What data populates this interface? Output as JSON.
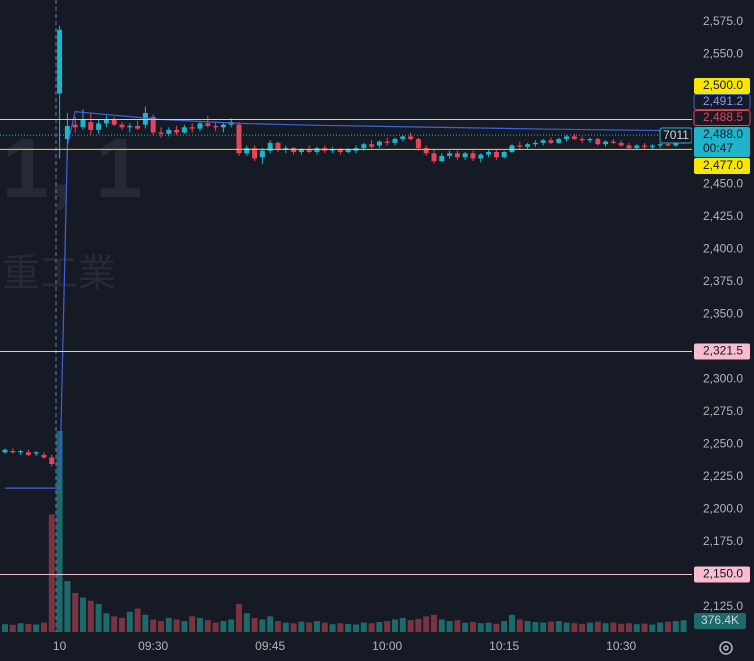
{
  "chart_data": {
    "type": "candlestick",
    "watermark_symbol": "1, 1",
    "watermark_name": "重工業",
    "up_color": "#1fb4c9",
    "down_color": "#e5455a",
    "up_volume_color": "#1d6a6b",
    "down_volume_color": "#7a3441",
    "xlim": [
      -0.641,
      88.08
    ],
    "xticks": [
      {
        "value": 7,
        "label": "10"
      },
      {
        "value": 19,
        "label": "09:30"
      },
      {
        "value": 34,
        "label": "09:45"
      },
      {
        "value": 49,
        "label": "10:00"
      },
      {
        "value": 64,
        "label": "10:15"
      },
      {
        "value": 79,
        "label": "10:30"
      }
    ],
    "ylim": [
      2105.8,
      2591.9
    ],
    "yticks": [
      {
        "value": 2575,
        "label": "2,575.0"
      },
      {
        "value": 2550,
        "label": "2,550.0"
      },
      {
        "value": 2450,
        "label": "2,450.0"
      },
      {
        "value": 2425,
        "label": "2,425.0"
      },
      {
        "value": 2400,
        "label": "2,400.0"
      },
      {
        "value": 2375,
        "label": "2,375.0"
      },
      {
        "value": 2350,
        "label": "2,350.0"
      },
      {
        "value": 2300,
        "label": "2,300.0"
      },
      {
        "value": 2275,
        "label": "2,275.0"
      },
      {
        "value": 2250,
        "label": "2,250.0"
      },
      {
        "value": 2225,
        "label": "2,225.0"
      },
      {
        "value": 2200,
        "label": "2,200.0"
      },
      {
        "value": 2175,
        "label": "2,175.0"
      },
      {
        "value": 2125,
        "label": "2,125.0"
      }
    ],
    "open": [
      2244,
      2245,
      2244,
      2244,
      2243,
      2242,
      2240,
      2520,
      2485,
      2496,
      2494,
      2498,
      2492,
      2497,
      2500,
      2496,
      2494,
      2495,
      2496,
      2502,
      2490,
      2489,
      2492,
      2490,
      2494,
      2493,
      2497,
      2495,
      2494,
      2496,
      2496,
      2474,
      2478,
      2471,
      2476,
      2482,
      2477,
      2478,
      2475,
      2477,
      2475,
      2478,
      2476,
      2477,
      2475,
      2476,
      2478,
      2481,
      2480,
      2483,
      2482,
      2485,
      2487,
      2485,
      2478,
      2474,
      2468,
      2472,
      2474,
      2471,
      2474,
      2470,
      2473,
      2475,
      2471,
      2475,
      2480,
      2479,
      2481,
      2482,
      2484,
      2482,
      2485,
      2487,
      2485,
      2484,
      2485,
      2481,
      2483,
      2482,
      2480,
      2478,
      2480,
      2479,
      2480,
      2481,
      2480,
      2482
    ],
    "high": [
      2247,
      2247,
      2246,
      2246,
      2245,
      2244,
      2242,
      2572,
      2505,
      2502,
      2508,
      2505,
      2500,
      2503,
      2502,
      2498,
      2497,
      2499,
      2510,
      2504,
      2494,
      2494,
      2495,
      2496,
      2497,
      2499,
      2503,
      2498,
      2497,
      2501,
      2498,
      2480,
      2480,
      2478,
      2484,
      2483,
      2480,
      2479,
      2478,
      2480,
      2479,
      2480,
      2479,
      2478,
      2478,
      2480,
      2482,
      2484,
      2484,
      2486,
      2486,
      2488,
      2490,
      2486,
      2480,
      2477,
      2474,
      2476,
      2476,
      2475,
      2476,
      2474,
      2477,
      2477,
      2476,
      2481,
      2483,
      2482,
      2484,
      2485,
      2486,
      2486,
      2488,
      2489,
      2487,
      2486,
      2486,
      2484,
      2485,
      2484,
      2482,
      2481,
      2482,
      2481,
      2482,
      2483,
      2483,
      2490
    ],
    "low": [
      2243,
      2243,
      2242,
      2241,
      2241,
      2239,
      2233,
      2470,
      2470,
      2490,
      2492,
      2488,
      2489,
      2494,
      2495,
      2492,
      2490,
      2492,
      2493,
      2488,
      2486,
      2487,
      2488,
      2489,
      2490,
      2491,
      2494,
      2491,
      2490,
      2494,
      2472,
      2472,
      2468,
      2466,
      2474,
      2475,
      2474,
      2473,
      2473,
      2474,
      2473,
      2474,
      2474,
      2473,
      2474,
      2474,
      2476,
      2478,
      2478,
      2480,
      2480,
      2483,
      2484,
      2476,
      2472,
      2466,
      2467,
      2470,
      2469,
      2469,
      2468,
      2467,
      2471,
      2469,
      2470,
      2474,
      2477,
      2477,
      2479,
      2480,
      2481,
      2481,
      2483,
      2484,
      2482,
      2482,
      2480,
      2479,
      2481,
      2479,
      2477,
      2477,
      2477,
      2477,
      2478,
      2479,
      2479,
      2481
    ],
    "close": [
      2246,
      2244,
      2245,
      2242,
      2244,
      2240,
      2235,
      2569,
      2495,
      2494,
      2500,
      2492,
      2497,
      2500,
      2496,
      2494,
      2495,
      2493,
      2505,
      2490,
      2489,
      2492,
      2490,
      2494,
      2493,
      2497,
      2495,
      2494,
      2496,
      2498,
      2474,
      2478,
      2470,
      2476,
      2482,
      2477,
      2478,
      2475,
      2477,
      2475,
      2478,
      2476,
      2477,
      2475,
      2477,
      2478,
      2481,
      2479,
      2483,
      2482,
      2485,
      2487,
      2485,
      2478,
      2474,
      2468,
      2472,
      2474,
      2471,
      2474,
      2470,
      2473,
      2475,
      2471,
      2475,
      2480,
      2479,
      2481,
      2482,
      2484,
      2482,
      2485,
      2487,
      2485,
      2484,
      2485,
      2481,
      2483,
      2482,
      2480,
      2478,
      2480,
      2479,
      2480,
      2481,
      2480,
      2482,
      2488
    ],
    "volume": [
      250000,
      230000,
      280000,
      260000,
      240000,
      300000,
      3760000,
      6430000,
      1630000,
      1250000,
      1100000,
      1000000,
      900000,
      600000,
      500000,
      450000,
      650000,
      750000,
      550000,
      400000,
      350000,
      450000,
      400000,
      350000,
      500000,
      450000,
      380000,
      300000,
      350000,
      400000,
      900000,
      600000,
      450000,
      400000,
      500000,
      350000,
      300000,
      280000,
      330000,
      300000,
      350000,
      300000,
      250000,
      280000,
      260000,
      240000,
      300000,
      280000,
      320000,
      350000,
      400000,
      450000,
      380000,
      420000,
      500000,
      550000,
      400000,
      350000,
      380000,
      300000,
      320000,
      280000,
      300000,
      260000,
      350000,
      550000,
      400000,
      350000,
      320000,
      300000,
      330000,
      350000,
      300000,
      280000,
      260000,
      300000,
      330000,
      280000,
      300000,
      260000,
      280000,
      250000,
      270000,
      240000,
      300000,
      330000,
      350000,
      376400
    ],
    "volume_lim": [
      0,
      8000000
    ],
    "volume_last": {
      "value": 376400,
      "label": "376.4K"
    },
    "vwap": {
      "color": "#3f62d8",
      "label": "2,491.2",
      "x": [
        0,
        6,
        7,
        8,
        9,
        20,
        30,
        40,
        50,
        60,
        70,
        80,
        87
      ],
      "values": [
        2216.5,
        2216.5,
        2216.5,
        2480,
        2506,
        2500,
        2497,
        2495.5,
        2494.5,
        2493.5,
        2492.5,
        2491.8,
        2491.2
      ]
    },
    "levels": [
      {
        "value": 2500,
        "label": "2,500.0",
        "color": "#f7e600"
      },
      {
        "value": 2477,
        "label": "2,477.0",
        "color": "#f7e600"
      },
      {
        "value": 2321.5,
        "label": "2,321.5",
        "color": "#f8bbd0"
      },
      {
        "value": 2150,
        "label": "2,150.0",
        "color": "#f8bbd0"
      }
    ],
    "markers": [
      {
        "value": 2488.5,
        "label": "2,488.5",
        "color": "#e5455a"
      }
    ],
    "last": {
      "value": 2488,
      "label": "2,488.0",
      "countdown": "00:47",
      "symbol": "7011",
      "color": "#1fb4c9"
    }
  }
}
